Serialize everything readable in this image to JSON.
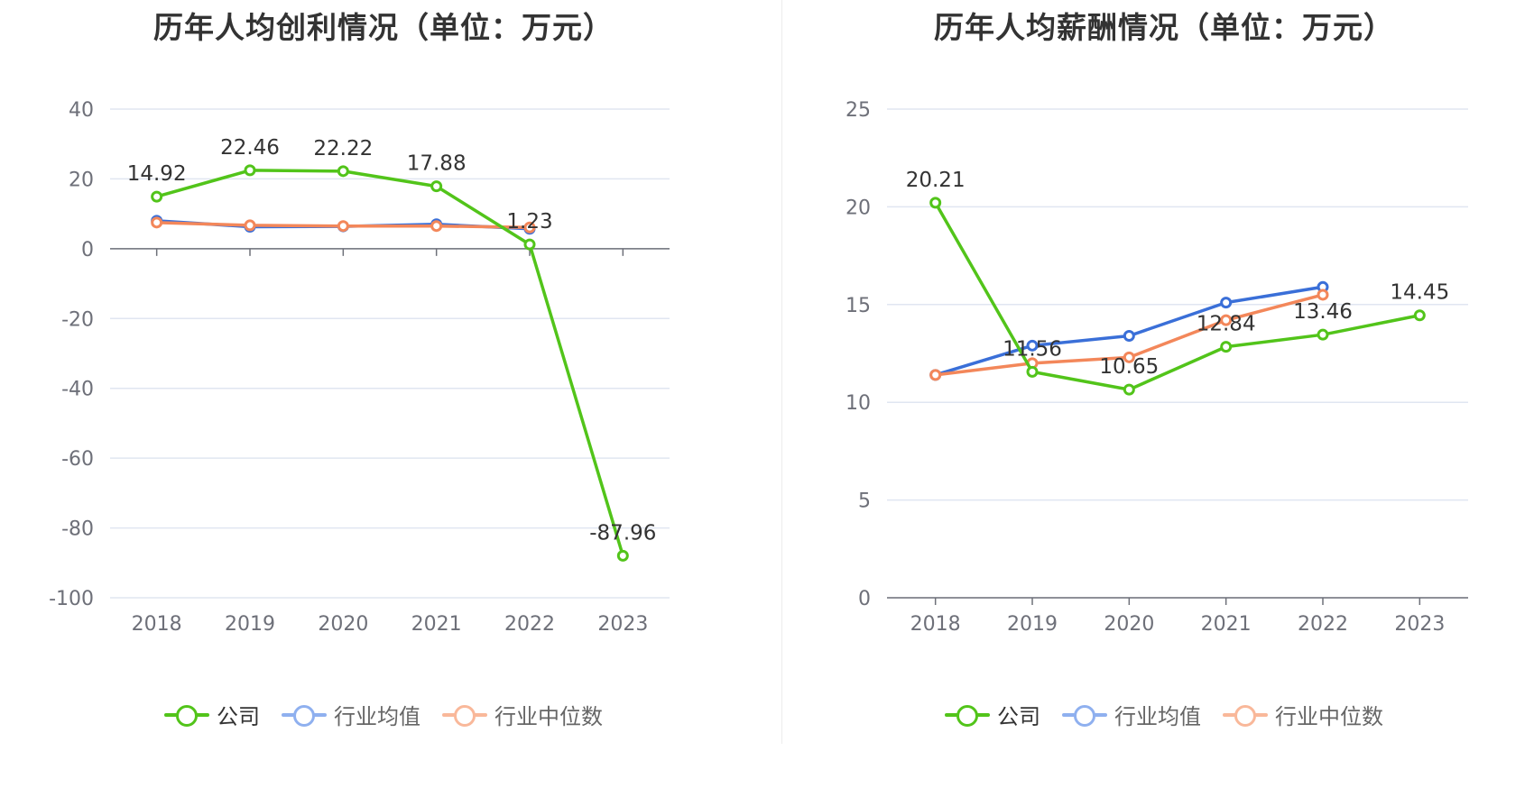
{
  "charts": [
    {
      "title": "历年人均创利情况（单位：万元）",
      "legend": [
        {
          "label": "公司",
          "color": "#52c41a"
        },
        {
          "label": "行业均值",
          "color": "#8fb0ef"
        },
        {
          "label": "行业中位数",
          "color": "#f9b89a"
        }
      ]
    },
    {
      "title": "历年人均薪酬情况（单位：万元）",
      "legend": [
        {
          "label": "公司",
          "color": "#52c41a"
        },
        {
          "label": "行业均值",
          "color": "#8fb0ef"
        },
        {
          "label": "行业中位数",
          "color": "#f9b89a"
        }
      ]
    }
  ],
  "chart_data": [
    {
      "type": "line",
      "title": "历年人均创利情况（单位：万元）",
      "categories": [
        "2018",
        "2019",
        "2020",
        "2021",
        "2022",
        "2023"
      ],
      "ylim": [
        -100,
        40
      ],
      "yticks": [
        40,
        20,
        0,
        -20,
        -40,
        -60,
        -80,
        -100
      ],
      "grid": true,
      "legend_position": "bottom",
      "series": [
        {
          "name": "公司",
          "color": "#52c41a",
          "values": [
            14.92,
            22.46,
            22.22,
            17.88,
            1.23,
            -87.96
          ],
          "labels": [
            "14.92",
            "22.46",
            "22.22",
            "17.88",
            "1.23",
            "-87.96"
          ]
        },
        {
          "name": "行业均值",
          "color": "#3a6fd8",
          "values": [
            8.0,
            6.3,
            6.4,
            7.0,
            5.7,
            null
          ]
        },
        {
          "name": "行业中位数",
          "color": "#f3875a",
          "values": [
            7.5,
            6.7,
            6.5,
            6.5,
            6.1,
            null
          ]
        }
      ]
    },
    {
      "type": "line",
      "title": "历年人均薪酬情况（单位：万元）",
      "categories": [
        "2018",
        "2019",
        "2020",
        "2021",
        "2022",
        "2023"
      ],
      "ylim": [
        0,
        25
      ],
      "yticks": [
        25,
        20,
        15,
        10,
        5,
        0
      ],
      "grid": true,
      "legend_position": "bottom",
      "series": [
        {
          "name": "公司",
          "color": "#52c41a",
          "values": [
            20.21,
            11.56,
            10.65,
            12.84,
            13.46,
            14.45
          ],
          "labels": [
            "20.21",
            "11.56",
            "10.65",
            "12.84",
            "13.46",
            "14.45"
          ]
        },
        {
          "name": "行业均值",
          "color": "#3a6fd8",
          "values": [
            11.4,
            12.9,
            13.4,
            15.1,
            15.9,
            null
          ]
        },
        {
          "name": "行业中位数",
          "color": "#f3875a",
          "values": [
            11.4,
            12.0,
            12.3,
            14.2,
            15.5,
            null
          ]
        }
      ]
    }
  ]
}
